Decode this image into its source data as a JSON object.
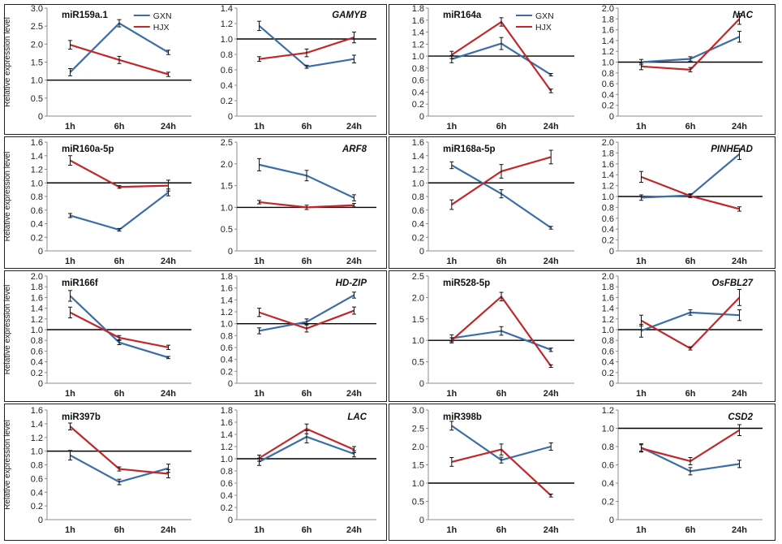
{
  "legend": {
    "gxn": "GXN",
    "hjx": "HJX"
  },
  "ylabel": "Relative expression level",
  "colors": {
    "gxn": "#3b6ea8",
    "hjx": "#c0282b",
    "axis": "#8c8c8c",
    "baseline": "#000000",
    "frame": "#222222"
  },
  "chart_data": [
    {
      "type": "line",
      "title": "miR159a.1",
      "italic": false,
      "ylim": [
        0,
        3
      ],
      "step": 0.5,
      "dec": 1,
      "baseline": 1,
      "categories": [
        "1h",
        "6h",
        "24h"
      ],
      "series": [
        {
          "name": "GXN",
          "values": [
            1.22,
            2.58,
            1.77
          ],
          "err": [
            0.1,
            0.1,
            0.06
          ]
        },
        {
          "name": "HJX",
          "values": [
            1.98,
            1.56,
            1.16
          ],
          "err": [
            0.12,
            0.1,
            0.06
          ]
        }
      ]
    },
    {
      "type": "line",
      "title": "GAMYB",
      "italic": true,
      "ylim": [
        0,
        1.4
      ],
      "step": 0.2,
      "dec": 1,
      "baseline": 1,
      "categories": [
        "1h",
        "6h",
        "24h"
      ],
      "series": [
        {
          "name": "GXN",
          "values": [
            1.17,
            0.64,
            0.74
          ],
          "err": [
            0.06,
            0.02,
            0.05
          ]
        },
        {
          "name": "HJX",
          "values": [
            0.74,
            0.82,
            1.02
          ],
          "err": [
            0.03,
            0.05,
            0.07
          ]
        }
      ]
    },
    {
      "type": "line",
      "title": "miR164a",
      "italic": false,
      "ylim": [
        0,
        1.8
      ],
      "step": 0.2,
      "dec": 1,
      "baseline": 1,
      "categories": [
        "1h",
        "6h",
        "24h"
      ],
      "series": [
        {
          "name": "GXN",
          "values": [
            0.95,
            1.21,
            0.69
          ],
          "err": [
            0.06,
            0.1,
            0.02
          ]
        },
        {
          "name": "HJX",
          "values": [
            1.02,
            1.57,
            0.42
          ],
          "err": [
            0.06,
            0.07,
            0.03
          ]
        }
      ]
    },
    {
      "type": "line",
      "title": "NAC",
      "italic": true,
      "ylim": [
        0,
        2
      ],
      "step": 0.2,
      "dec": 1,
      "baseline": 1,
      "categories": [
        "1h",
        "6h",
        "24h"
      ],
      "series": [
        {
          "name": "GXN",
          "values": [
            1.0,
            1.06,
            1.47
          ],
          "err": [
            0.05,
            0.04,
            0.1
          ]
        },
        {
          "name": "HJX",
          "values": [
            0.92,
            0.86,
            1.8
          ],
          "err": [
            0.06,
            0.04,
            0.1
          ]
        }
      ]
    },
    {
      "type": "line",
      "title": "miR160a-5p",
      "italic": false,
      "ylim": [
        0,
        1.6
      ],
      "step": 0.2,
      "dec": 1,
      "baseline": 1,
      "categories": [
        "1h",
        "6h",
        "24h"
      ],
      "series": [
        {
          "name": "GXN",
          "values": [
            0.52,
            0.31,
            0.86
          ],
          "err": [
            0.03,
            0.02,
            0.05
          ]
        },
        {
          "name": "HJX",
          "values": [
            1.33,
            0.94,
            0.96
          ],
          "err": [
            0.07,
            0.02,
            0.08
          ]
        }
      ]
    },
    {
      "type": "line",
      "title": "ARF8",
      "italic": true,
      "ylim": [
        0,
        2.5
      ],
      "step": 0.5,
      "dec": 1,
      "baseline": 1,
      "categories": [
        "1h",
        "6h",
        "24h"
      ],
      "series": [
        {
          "name": "GXN",
          "values": [
            1.98,
            1.73,
            1.22
          ],
          "err": [
            0.14,
            0.12,
            0.07
          ]
        },
        {
          "name": "HJX",
          "values": [
            1.12,
            1.0,
            1.05
          ],
          "err": [
            0.04,
            0.05,
            0.04
          ]
        }
      ]
    },
    {
      "type": "line",
      "title": "miR168a-5p",
      "italic": false,
      "ylim": [
        0,
        1.6
      ],
      "step": 0.2,
      "dec": 1,
      "baseline": 1,
      "categories": [
        "1h",
        "6h",
        "24h"
      ],
      "series": [
        {
          "name": "GXN",
          "values": [
            1.26,
            0.84,
            0.34
          ],
          "err": [
            0.05,
            0.06,
            0.02
          ]
        },
        {
          "name": "HJX",
          "values": [
            0.68,
            1.17,
            1.38
          ],
          "err": [
            0.07,
            0.1,
            0.1
          ]
        }
      ]
    },
    {
      "type": "line",
      "title": "PINHEAD",
      "italic": true,
      "ylim": [
        0,
        2
      ],
      "step": 0.2,
      "dec": 1,
      "baseline": 1,
      "categories": [
        "1h",
        "6h",
        "24h"
      ],
      "series": [
        {
          "name": "GXN",
          "values": [
            0.98,
            1.02,
            1.78
          ],
          "err": [
            0.05,
            0.03,
            0.1
          ]
        },
        {
          "name": "HJX",
          "values": [
            1.36,
            1.01,
            0.77
          ],
          "err": [
            0.1,
            0.03,
            0.04
          ]
        }
      ]
    },
    {
      "type": "line",
      "title": "miR166f",
      "italic": false,
      "ylim": [
        0,
        2
      ],
      "step": 0.2,
      "dec": 1,
      "baseline": 1,
      "categories": [
        "1h",
        "6h",
        "24h"
      ],
      "series": [
        {
          "name": "GXN",
          "values": [
            1.63,
            0.76,
            0.48
          ],
          "err": [
            0.1,
            0.04,
            0.02
          ]
        },
        {
          "name": "HJX",
          "values": [
            1.32,
            0.85,
            0.67
          ],
          "err": [
            0.1,
            0.04,
            0.04
          ]
        }
      ]
    },
    {
      "type": "line",
      "title": "HD-ZIP",
      "italic": true,
      "ylim": [
        0,
        1.8
      ],
      "step": 0.2,
      "dec": 1,
      "baseline": 1,
      "categories": [
        "1h",
        "6h",
        "24h"
      ],
      "series": [
        {
          "name": "GXN",
          "values": [
            0.88,
            1.03,
            1.48
          ],
          "err": [
            0.05,
            0.05,
            0.05
          ]
        },
        {
          "name": "HJX",
          "values": [
            1.19,
            0.92,
            1.22
          ],
          "err": [
            0.07,
            0.06,
            0.06
          ]
        }
      ]
    },
    {
      "type": "line",
      "title": "miR528-5p",
      "italic": false,
      "ylim": [
        0,
        2.5
      ],
      "step": 0.5,
      "dec": 1,
      "baseline": 1,
      "categories": [
        "1h",
        "6h",
        "24h"
      ],
      "series": [
        {
          "name": "GXN",
          "values": [
            1.05,
            1.22,
            0.78
          ],
          "err": [
            0.08,
            0.1,
            0.04
          ]
        },
        {
          "name": "HJX",
          "values": [
            1.0,
            2.02,
            0.4
          ],
          "err": [
            0.06,
            0.1,
            0.03
          ]
        }
      ]
    },
    {
      "type": "line",
      "title": "OsFBL27",
      "italic": true,
      "ylim": [
        0,
        2
      ],
      "step": 0.2,
      "dec": 1,
      "baseline": 1,
      "categories": [
        "1h",
        "6h",
        "24h"
      ],
      "series": [
        {
          "name": "GXN",
          "values": [
            0.98,
            1.32,
            1.27
          ],
          "err": [
            0.12,
            0.05,
            0.1
          ]
        },
        {
          "name": "HJX",
          "values": [
            1.17,
            0.65,
            1.6
          ],
          "err": [
            0.1,
            0.03,
            0.15
          ]
        }
      ]
    },
    {
      "type": "line",
      "title": "miR397b",
      "italic": false,
      "ylim": [
        0,
        1.6
      ],
      "step": 0.2,
      "dec": 1,
      "baseline": 1,
      "categories": [
        "1h",
        "6h",
        "24h"
      ],
      "series": [
        {
          "name": "GXN",
          "values": [
            0.94,
            0.55,
            0.75
          ],
          "err": [
            0.07,
            0.04,
            0.06
          ]
        },
        {
          "name": "HJX",
          "values": [
            1.36,
            0.74,
            0.67
          ],
          "err": [
            0.05,
            0.03,
            0.06
          ]
        }
      ]
    },
    {
      "type": "line",
      "title": "LAC",
      "italic": true,
      "ylim": [
        0,
        1.8
      ],
      "step": 0.2,
      "dec": 1,
      "baseline": 1,
      "categories": [
        "1h",
        "6h",
        "24h"
      ],
      "series": [
        {
          "name": "GXN",
          "values": [
            0.95,
            1.36,
            1.08
          ],
          "err": [
            0.06,
            0.1,
            0.05
          ]
        },
        {
          "name": "HJX",
          "values": [
            1.01,
            1.49,
            1.15
          ],
          "err": [
            0.05,
            0.08,
            0.05
          ]
        }
      ]
    },
    {
      "type": "line",
      "title": "miR398b",
      "italic": false,
      "ylim": [
        0,
        3
      ],
      "step": 0.5,
      "dec": 1,
      "baseline": 1,
      "categories": [
        "1h",
        "6h",
        "24h"
      ],
      "series": [
        {
          "name": "GXN",
          "values": [
            2.57,
            1.63,
            2.0
          ],
          "err": [
            0.12,
            0.08,
            0.1
          ]
        },
        {
          "name": "HJX",
          "values": [
            1.58,
            1.92,
            0.66
          ],
          "err": [
            0.12,
            0.15,
            0.04
          ]
        }
      ]
    },
    {
      "type": "line",
      "title": "CSD2",
      "italic": true,
      "ylim": [
        0,
        1.2
      ],
      "step": 0.2,
      "dec": 1,
      "baseline": 1,
      "categories": [
        "1h",
        "6h",
        "24h"
      ],
      "series": [
        {
          "name": "GXN",
          "values": [
            0.79,
            0.53,
            0.61
          ],
          "err": [
            0.04,
            0.04,
            0.04
          ]
        },
        {
          "name": "HJX",
          "values": [
            0.78,
            0.64,
            0.98
          ],
          "err": [
            0.04,
            0.04,
            0.06
          ]
        }
      ]
    }
  ]
}
